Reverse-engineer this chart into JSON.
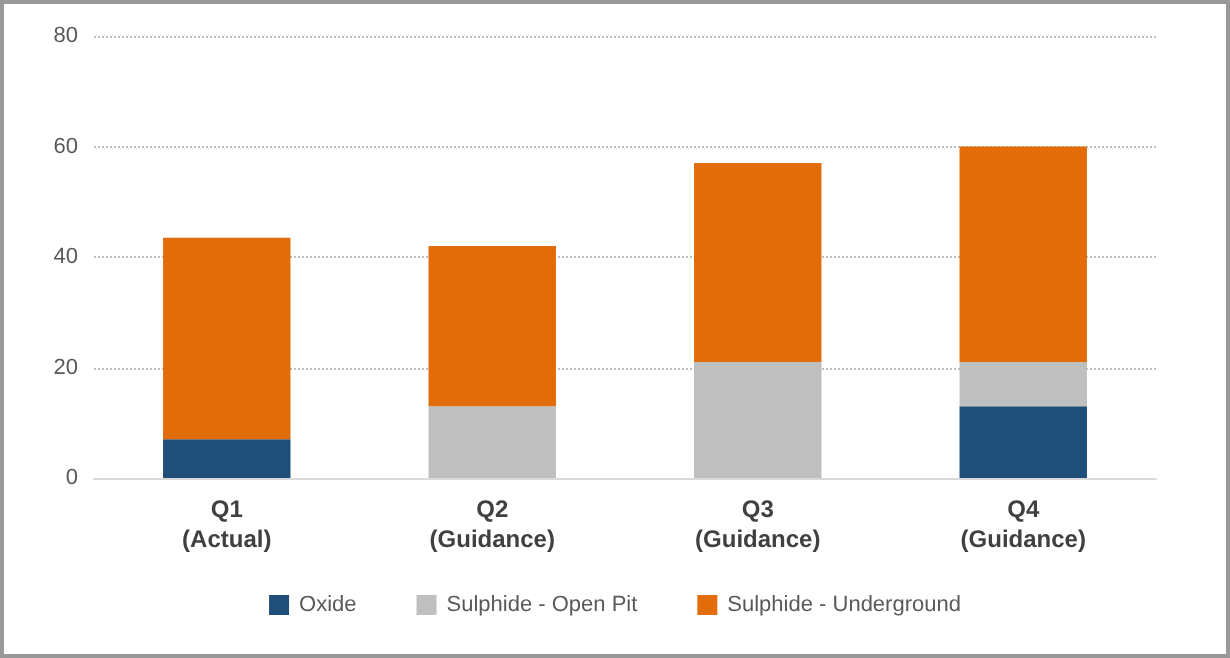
{
  "chart_data": {
    "type": "bar",
    "stacked": true,
    "categories": [
      "Q1\n(Actual)",
      "Q2\n(Guidance)",
      "Q3\n(Guidance)",
      "Q4\n(Guidance)"
    ],
    "series": [
      {
        "name": "Oxide",
        "color": "#1f4e79",
        "values": [
          7,
          0,
          0,
          13
        ]
      },
      {
        "name": "Sulphide - Open Pit",
        "color": "#bfbfbf",
        "values": [
          0,
          13,
          21,
          8
        ]
      },
      {
        "name": "Sulphide - Underground",
        "color": "#e36c0a",
        "values": [
          36.5,
          29,
          36,
          39
        ]
      }
    ],
    "ylim": [
      0,
      80
    ],
    "yticks": [
      0,
      20,
      40,
      60,
      80
    ],
    "grid": "y",
    "legend": "bottom"
  }
}
